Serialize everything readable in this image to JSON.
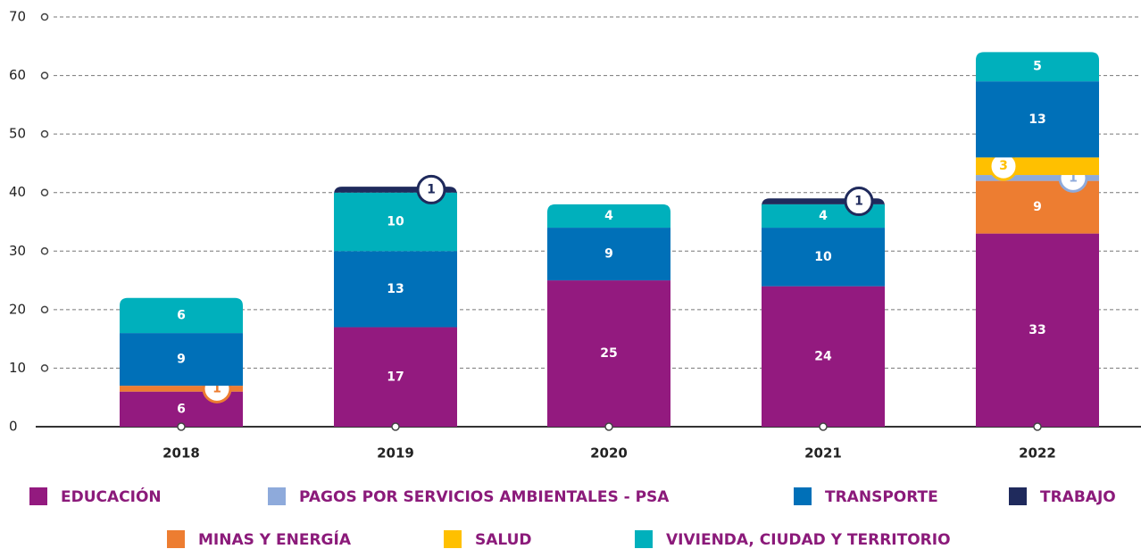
{
  "chart_data": {
    "type": "stacked_bar",
    "categories": [
      "2018",
      "2019",
      "2020",
      "2021",
      "2022"
    ],
    "series": [
      {
        "name": "EDUCACIÓN",
        "color": "#931a7f",
        "values": [
          6,
          17,
          25,
          24,
          33
        ]
      },
      {
        "name": "PAGOS POR SERVICIOS AMBIENTALES - PSA",
        "color": "#8eaadb",
        "values": [
          null,
          null,
          null,
          null,
          1
        ]
      },
      {
        "name": "TRANSPORTE",
        "color": "#0070b8",
        "values": [
          9,
          13,
          9,
          10,
          13
        ]
      },
      {
        "name": "TRABAJO",
        "color": "#1f2a5c",
        "values": [
          null,
          1,
          null,
          1,
          null
        ]
      },
      {
        "name": "MINAS Y ENERGÍA",
        "color": "#ed7d31",
        "values": [
          1,
          null,
          null,
          null,
          9
        ]
      },
      {
        "name": "SALUD",
        "color": "#ffc000",
        "values": [
          null,
          null,
          null,
          null,
          3
        ]
      },
      {
        "name": "VIVIENDA, CIUDAD Y TERRITORIO",
        "color": "#00b0bc",
        "values": [
          6,
          10,
          4,
          4,
          5
        ]
      }
    ],
    "ylim": [
      0,
      70
    ],
    "yticks": [
      0,
      10,
      20,
      30,
      40,
      50,
      60,
      70
    ],
    "grid": true
  }
}
